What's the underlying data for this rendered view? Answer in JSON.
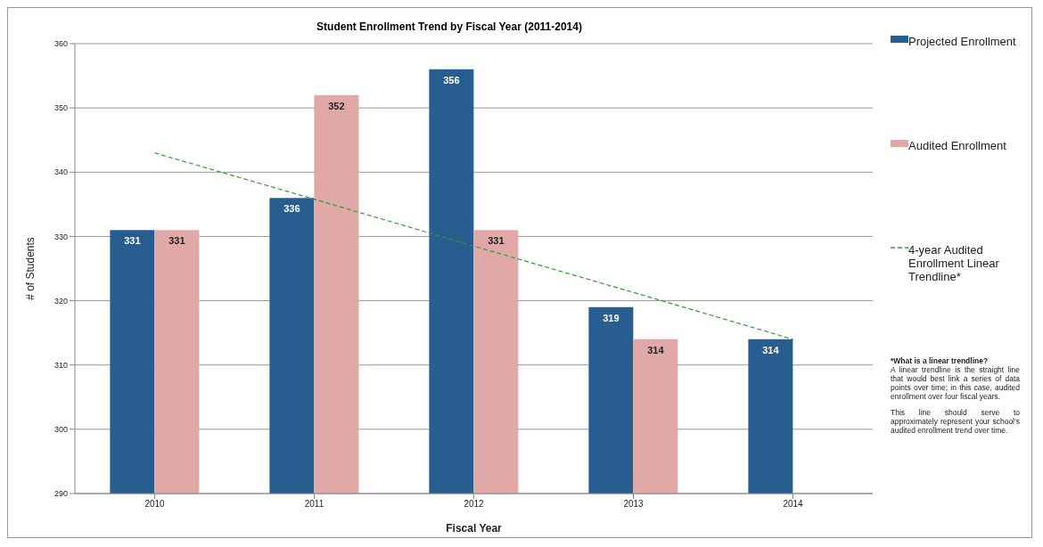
{
  "chart_data": {
    "type": "bar",
    "title": "Student Enrollment Trend by Fiscal Year (2011-2014)",
    "xlabel": "Fiscal Year",
    "ylabel": "# of Students",
    "categories": [
      "2010",
      "2011",
      "2012",
      "2013",
      "2014"
    ],
    "series": [
      {
        "name": "Projected Enrollment",
        "color": "#275d8f",
        "values": [
          331,
          336,
          356,
          319,
          314
        ],
        "value_labels": [
          "331",
          "336",
          "356",
          "319",
          "314"
        ]
      },
      {
        "name": "Audited Enrollment",
        "color": "#e0a8a7",
        "values": [
          331,
          352,
          331,
          314,
          null
        ],
        "value_labels": [
          "331",
          "352",
          "331",
          "314",
          null
        ]
      },
      {
        "name": "4-year Audited Enrollment Linear Trendline*",
        "type": "line",
        "color": "#2e9e2e",
        "line_style": "dashed",
        "marker": "none",
        "values": [
          343,
          335.8,
          328.5,
          321.3,
          314
        ]
      }
    ],
    "ylim": [
      290,
      360
    ],
    "yticks": [
      290,
      300,
      310,
      320,
      330,
      340,
      350,
      360
    ],
    "grid": "y",
    "legend": "right",
    "annotations": [
      "*What is a linear trendline?",
      "A linear trendline is the straight line that would best link a series of data points over time; in this case, audited enrollment over four fiscal years.",
      "This line should serve to approximately represent your school’s audited enrollment trend over time."
    ]
  }
}
